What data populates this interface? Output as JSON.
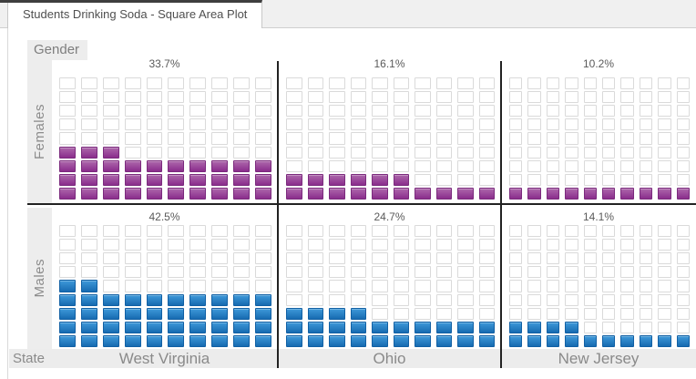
{
  "tab": {
    "title": "Students Drinking Soda - Square Area Plot"
  },
  "legend": {
    "row_variable_label": "Gender",
    "column_variable_label": "State"
  },
  "colors": {
    "female_fill_top": "#ad68ab",
    "female_fill_bottom": "#8a2d8c",
    "female_stroke": "#7b2a7d",
    "male_fill_top": "#3e99d9",
    "male_fill_bottom": "#176bb1",
    "male_stroke": "#1160a4",
    "empty_square_border": "#dadada",
    "axis_line": "#222222",
    "band_background": "#ececec"
  },
  "chart_data": {
    "type": "heatmap",
    "subtype": "square-area-waffle",
    "title": "Students Drinking Soda - Square Area Plot",
    "row_variable": "Gender",
    "column_variable": "State",
    "grid": {
      "columns": 10,
      "rows": 9,
      "square_unit_percent": 1
    },
    "categories": [
      "West Virginia",
      "Ohio",
      "New Jersey"
    ],
    "series": [
      {
        "gender": "Females",
        "fill_top": "#ad68ab",
        "fill_bottom": "#8a2d8c",
        "stroke": "#7b2a7d",
        "values": [
          {
            "state": "West Virginia",
            "percent": 33.7,
            "percent_label": "33.7%",
            "filled": 33
          },
          {
            "state": "Ohio",
            "percent": 16.1,
            "percent_label": "16.1%",
            "filled": 16
          },
          {
            "state": "New Jersey",
            "percent": 10.2,
            "percent_label": "10.2%",
            "filled": 10
          }
        ]
      },
      {
        "gender": "Males",
        "fill_top": "#3e99d9",
        "fill_bottom": "#176bb1",
        "stroke": "#1160a4",
        "values": [
          {
            "state": "West Virginia",
            "percent": 42.5,
            "percent_label": "42.5%",
            "filled": 42
          },
          {
            "state": "Ohio",
            "percent": 24.7,
            "percent_label": "24.7%",
            "filled": 24
          },
          {
            "state": "New Jersey",
            "percent": 14.1,
            "percent_label": "14.1%",
            "filled": 14
          }
        ]
      }
    ]
  }
}
